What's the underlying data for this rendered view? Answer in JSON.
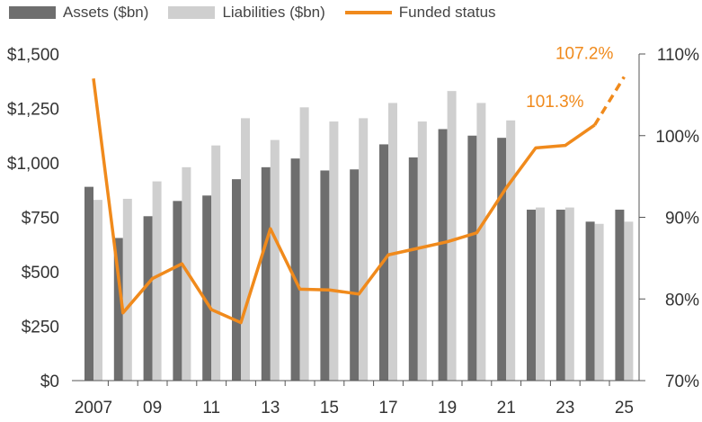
{
  "chart_data": {
    "type": "bar+line",
    "legend": [
      {
        "label": "Assets ($bn)",
        "color": "#6e6e6e",
        "kind": "bar"
      },
      {
        "label": "Liabilities ($bn)",
        "color": "#cfcfcf",
        "kind": "bar"
      },
      {
        "label": "Funded status",
        "color": "#f08a1c",
        "kind": "line"
      }
    ],
    "years": [
      2007,
      2008,
      2009,
      2010,
      2011,
      2012,
      2013,
      2014,
      2015,
      2016,
      2017,
      2018,
      2019,
      2020,
      2021,
      2022,
      2023,
      2024,
      2025
    ],
    "x_tick_labels": [
      "2007",
      "09",
      "11",
      "13",
      "15",
      "17",
      "19",
      "21",
      "23",
      "25"
    ],
    "x_tick_years": [
      2007,
      2009,
      2011,
      2013,
      2015,
      2017,
      2019,
      2021,
      2023,
      2025
    ],
    "series": [
      {
        "name": "Assets ($bn)",
        "axis": "left",
        "values": [
          890,
          655,
          755,
          825,
          850,
          925,
          980,
          1020,
          965,
          970,
          1085,
          1025,
          1155,
          1125,
          1115,
          785,
          785,
          730,
          785
        ]
      },
      {
        "name": "Liabilities ($bn)",
        "axis": "left",
        "values": [
          830,
          835,
          915,
          980,
          1080,
          1205,
          1105,
          1255,
          1190,
          1205,
          1275,
          1190,
          1330,
          1275,
          1195,
          795,
          795,
          720,
          730
        ]
      },
      {
        "name": "Funded status",
        "axis": "right",
        "unit": "%",
        "values": [
          107.0,
          78.3,
          82.5,
          84.3,
          78.7,
          77.1,
          88.6,
          81.2,
          81.1,
          80.6,
          85.4,
          86.2,
          87.0,
          88.1,
          93.6,
          98.5,
          98.8,
          101.3,
          107.2
        ],
        "projected_from_index": 17
      }
    ],
    "left_axis": {
      "min": 0,
      "max": 1500,
      "ticks": [
        0,
        250,
        500,
        750,
        1000,
        1250,
        1500
      ],
      "tick_labels": [
        "$0",
        "$250",
        "$500",
        "$750",
        "$1,000",
        "$1,250",
        "$1,500"
      ]
    },
    "right_axis": {
      "min": 70,
      "max": 110,
      "ticks": [
        70,
        80,
        90,
        100,
        110
      ],
      "tick_labels": [
        "70%",
        "80%",
        "90%",
        "100%",
        "110%"
      ]
    },
    "annotations": [
      {
        "text": "101.3%",
        "year": 2024,
        "value": 101.3
      },
      {
        "text": "107.2%",
        "year": 2025,
        "value": 107.2
      }
    ]
  }
}
